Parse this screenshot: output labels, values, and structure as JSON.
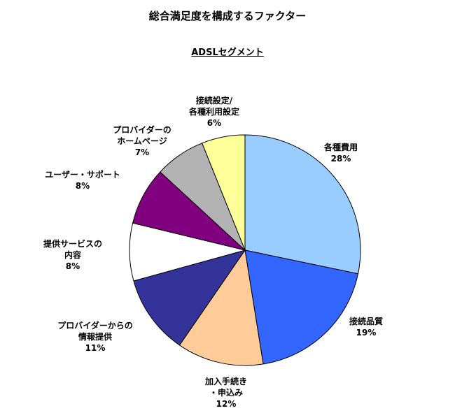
{
  "chart_data": {
    "type": "pie",
    "title": "総合満足度を構成するファクター",
    "subtitle": "ADSLセグメント",
    "slices": [
      {
        "lines": [
          "各種費用"
        ],
        "pct_label": "28%",
        "value": 28,
        "color": "#99ccff"
      },
      {
        "lines": [
          "接続品質"
        ],
        "pct_label": "19%",
        "value": 19,
        "color": "#3366ff"
      },
      {
        "lines": [
          "加入手続き",
          "・申込み"
        ],
        "pct_label": "12%",
        "value": 12,
        "color": "#ffcc99"
      },
      {
        "lines": [
          "プロバイダーからの",
          "情報提供"
        ],
        "pct_label": "11%",
        "value": 11,
        "color": "#333399"
      },
      {
        "lines": [
          "提供サービスの",
          "内容"
        ],
        "pct_label": "8%",
        "value": 8,
        "color": "#ffffff"
      },
      {
        "lines": [
          "ユーザー・サポート"
        ],
        "pct_label": "8%",
        "value": 8,
        "color": "#800080"
      },
      {
        "lines": [
          "プロバイダーの",
          "ホームページ"
        ],
        "pct_label": "7%",
        "value": 7,
        "color": "#b2b2b2"
      },
      {
        "lines": [
          "接続設定/",
          "各種利用設定"
        ],
        "pct_label": "6%",
        "value": 6,
        "color": "#ffff99"
      }
    ]
  }
}
